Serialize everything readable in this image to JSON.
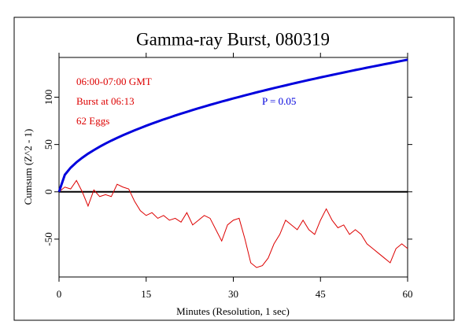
{
  "chart_data": {
    "type": "line",
    "title": "Gamma-ray Burst, 080319",
    "xlabel": "Minutes (Resolution, 1 sec)",
    "ylabel": "Cumsum (Z^2 - 1)",
    "annotations": [
      "06:00-07:00 GMT",
      "Burst at 06:13",
      "62 Eggs",
      "P = 0.05"
    ],
    "x": [
      0,
      1,
      2,
      3,
      4,
      5,
      6,
      7,
      8,
      9,
      10,
      11,
      12,
      13,
      14,
      15,
      16,
      17,
      18,
      19,
      20,
      21,
      22,
      23,
      24,
      25,
      26,
      27,
      28,
      29,
      30,
      31,
      32,
      33,
      34,
      35,
      36,
      37,
      38,
      39,
      40,
      41,
      42,
      43,
      44,
      45,
      46,
      47,
      48,
      49,
      50,
      51,
      52,
      53,
      54,
      55,
      56,
      57,
      58,
      59,
      60
    ],
    "series": [
      {
        "name": "Cumsum",
        "color": "#dd0000",
        "values": [
          0,
          5,
          3,
          12,
          0,
          -15,
          2,
          -5,
          -3,
          -5,
          8,
          5,
          3,
          -10,
          -20,
          -25,
          -22,
          -28,
          -25,
          -30,
          -28,
          -32,
          -22,
          -35,
          -30,
          -25,
          -28,
          -40,
          -52,
          -35,
          -30,
          -28,
          -50,
          -75,
          -80,
          -78,
          -70,
          -55,
          -45,
          -30,
          -35,
          -40,
          -30,
          -40,
          -45,
          -30,
          -18,
          -30,
          -38,
          -35,
          -45,
          -40,
          -45,
          -55,
          -60,
          -65,
          -70,
          -75,
          -60,
          -55,
          -60
        ]
      },
      {
        "name": "P = 0.05 envelope",
        "color": "#0000dd",
        "values": [
          0,
          18.0,
          25.5,
          31.2,
          36.0,
          40.3,
          44.1,
          47.7,
          51.0,
          54.1,
          57.0,
          59.8,
          62.4,
          65.0,
          67.4,
          69.8,
          72.1,
          74.3,
          76.5,
          78.5,
          80.6,
          82.6,
          84.5,
          86.4,
          88.3,
          90.1,
          91.9,
          93.6,
          95.4,
          97.0,
          98.7,
          100.3,
          101.9,
          103.5,
          105.1,
          106.6,
          108.1,
          109.6,
          111.1,
          112.5,
          114.0,
          115.4,
          116.8,
          118.2,
          119.5,
          120.9,
          122.2,
          123.5,
          124.8,
          126.1,
          127.4,
          128.7,
          129.9,
          131.2,
          132.4,
          133.6,
          134.8,
          136.0,
          137.2,
          138.4,
          139.6
        ]
      }
    ],
    "xlim": [
      0,
      60
    ],
    "xticks": [
      0,
      15,
      30,
      45,
      60
    ],
    "ylim": [
      -90,
      142
    ],
    "yticks": [
      -50,
      0,
      50,
      100
    ]
  }
}
